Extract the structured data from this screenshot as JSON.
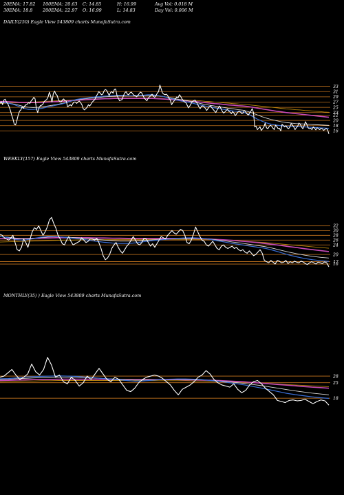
{
  "header": {
    "row1": [
      "20EMA: 17.82",
      "100EMA: 20.63",
      "C: 14.85",
      "H: 16.99",
      "Avg Vol: 0.018  M"
    ],
    "row2": [
      "30EMA: 18.8",
      "200EMA: 22.97",
      "O: 16.99",
      "L: 14.83",
      "Day Vol: 0.006  M"
    ]
  },
  "panels": {
    "daily": {
      "label": "DAILY(250) Eagle  View  543809 charts MunafaSutra.com"
    },
    "weekly": {
      "label": "WEEKLY(157) Eagle  View  543809 charts MunafaSutra.com"
    },
    "monthly": {
      "label": "MONTHLY(35)                    ) Eagle  View  543809 charts MunafaSutra.com"
    }
  },
  "colors": {
    "background": "#000000",
    "price": "#ffffff",
    "ema_short": "#3b6fd6",
    "ema_mid": "#d9d9d9",
    "ema_long": "#c84ab8",
    "ema_slow": "#b8860b",
    "grid": "#c8761e"
  },
  "chart_data": [
    {
      "type": "line",
      "name": "daily",
      "ylim": [
        14,
        35
      ],
      "yticks": [
        33,
        31,
        29,
        27,
        25,
        23,
        22,
        20,
        18,
        16
      ],
      "price": [
        26.5,
        27.2,
        26.0,
        27.8,
        28.1,
        27.0,
        26.4,
        25.2,
        23.8,
        22.0,
        20.5,
        18.5,
        18.3,
        20.0,
        22.0,
        23.5,
        24.0,
        25.2,
        24.6,
        25.5,
        26.0,
        26.2,
        26.8,
        26.5,
        27.5,
        28.0,
        28.8,
        28.2,
        24.5,
        23.0,
        24.8,
        25.6,
        25.8,
        26.2,
        27.2,
        27.6,
        28.0,
        29.0,
        30.8,
        29.2,
        27.0,
        30.2,
        31.2,
        30.0,
        29.5,
        27.8,
        27.2,
        27.0,
        27.8,
        28.2,
        27.5,
        27.4,
        25.2,
        25.6,
        26.0,
        25.5,
        26.4,
        27.0,
        27.0,
        26.5,
        27.0,
        27.4,
        26.8,
        26.0,
        24.5,
        24.0,
        24.5,
        25.0,
        26.0,
        25.5,
        26.2,
        27.0,
        27.5,
        28.0,
        29.2,
        30.0,
        31.0,
        30.5,
        29.8,
        30.0,
        31.2,
        31.8,
        31.5,
        30.5,
        29.5,
        30.6,
        31.0,
        30.4,
        31.8,
        32.0,
        29.5,
        28.5,
        27.5,
        27.8,
        28.0,
        29.5,
        30.5,
        31.0,
        30.0,
        29.8,
        30.5,
        30.8,
        30.2,
        29.6,
        29.5,
        29.0,
        29.5,
        30.2,
        30.8,
        30.5,
        29.5,
        28.5,
        28.0,
        27.5,
        28.5,
        29.0,
        29.5,
        30.0,
        29.2,
        28.8,
        29.5,
        30.4,
        31.0,
        33.5,
        32.0,
        30.5,
        30.0,
        29.8,
        30.0,
        29.5,
        28.4,
        27.8,
        26.0,
        26.8,
        27.5,
        28.2,
        29.0,
        28.6,
        29.8,
        29.2,
        28.2,
        27.6,
        27.0,
        26.8,
        25.8,
        24.8,
        25.5,
        26.4,
        27.2,
        27.5,
        27.8,
        27.0,
        26.2,
        25.2,
        24.5,
        25.4,
        25.5,
        25.2,
        24.6,
        23.8,
        24.5,
        25.2,
        25.6,
        24.8,
        24.2,
        23.6,
        23.0,
        24.0,
        24.8,
        25.5,
        24.5,
        23.5,
        22.8,
        23.2,
        23.8,
        24.2,
        23.5,
        23.2,
        22.6,
        23.4,
        22.8,
        21.8,
        22.5,
        23.2,
        23.6,
        23.2,
        22.6,
        22.8,
        23.8,
        23.2,
        22.5,
        22.0,
        22.8,
        23.5,
        24.5,
        23.0,
        17.5,
        17.8,
        16.5,
        17.0,
        17.6,
        16.2,
        16.8,
        17.5,
        19.0,
        17.2,
        16.8,
        17.6,
        18.2,
        17.8,
        17.0,
        16.5,
        18.2,
        17.6,
        16.8,
        17.0,
        16.0,
        18.5,
        18.0,
        17.5,
        18.0,
        17.2,
        16.8,
        17.5,
        18.8,
        18.2,
        17.5,
        16.5,
        17.2,
        17.8,
        19.0,
        18.5,
        17.5,
        16.8,
        18.0,
        19.5,
        18.5,
        17.2,
        16.8,
        17.0,
        16.5,
        17.5,
        17.0,
        16.4,
        17.2,
        16.8,
        16.5,
        17.0,
        16.8,
        16.2,
        16.6,
        16.9,
        16.5,
        14.85
      ],
      "ema_20": [
        26.9,
        26.8,
        26.5,
        26.0,
        25.3,
        24.6,
        24.2,
        24.2,
        24.4,
        24.7,
        25.1,
        25.5,
        25.9,
        26.3,
        26.8,
        27.4,
        28.0,
        28.3,
        28.5,
        28.8,
        29.0,
        29.1,
        29.3,
        29.4,
        29.5,
        29.6,
        29.5,
        29.4,
        29.4,
        29.5,
        29.6,
        29.8,
        29.8,
        29.5,
        29.2,
        28.8,
        28.3,
        27.8,
        27.4,
        27.1,
        26.8,
        26.3,
        25.9,
        25.5,
        25.2,
        24.8,
        24.5,
        24.2,
        23.9,
        23.6,
        23.4,
        23.2,
        22.5,
        21.5,
        20.5,
        19.7,
        19.0,
        18.5,
        18.2,
        18.0,
        17.8,
        17.8,
        17.7,
        17.6,
        17.5,
        17.4,
        17.3,
        17.2,
        17.1,
        17.0
      ],
      "ema_30": [
        26.8,
        26.7,
        26.5,
        26.2,
        25.8,
        25.3,
        25.0,
        24.9,
        25.0,
        25.2,
        25.5,
        25.8,
        26.1,
        26.5,
        26.9,
        27.4,
        27.8,
        28.1,
        28.3,
        28.5,
        28.7,
        28.8,
        29.0,
        29.1,
        29.2,
        29.3,
        29.3,
        29.3,
        29.3,
        29.3,
        29.4,
        29.5,
        29.5,
        29.4,
        29.2,
        28.9,
        28.6,
        28.2,
        27.9,
        27.6,
        27.3,
        26.9,
        26.5,
        26.1,
        25.8,
        25.5,
        25.2,
        24.9,
        24.6,
        24.4,
        24.1,
        23.9,
        23.4,
        22.8,
        22.1,
        21.4,
        20.8,
        20.3,
        19.9,
        19.5,
        19.2,
        19.0,
        18.8,
        18.7,
        18.6,
        18.5,
        18.4,
        18.3,
        18.2,
        18.1
      ],
      "ema_100": [
        27.2,
        27.2,
        27.1,
        27.0,
        26.9,
        26.8,
        26.8,
        26.8,
        26.8,
        26.9,
        27.0,
        27.1,
        27.2,
        27.3,
        27.4,
        27.6,
        27.7,
        27.8,
        27.9,
        28.0,
        28.1,
        28.2,
        28.3,
        28.3,
        28.4,
        28.4,
        28.4,
        28.4,
        28.4,
        28.4,
        28.4,
        28.4,
        28.4,
        28.3,
        28.2,
        28.1,
        27.9,
        27.8,
        27.6,
        27.5,
        27.3,
        27.2,
        27.0,
        26.8,
        26.6,
        26.4,
        26.3,
        26.1,
        25.9,
        25.8,
        25.6,
        25.5,
        25.3,
        25.0,
        24.7,
        24.4,
        24.1,
        23.8,
        23.5,
        23.3,
        23.0,
        22.8,
        22.6,
        22.4,
        22.2,
        22.0,
        21.8,
        21.6,
        21.4,
        21.2
      ],
      "ema_200": [
        26.5,
        26.6,
        26.7,
        26.7,
        26.8,
        26.8,
        26.9,
        27.0,
        27.1,
        27.2,
        27.3,
        27.4,
        27.5,
        27.6,
        27.7,
        27.8,
        27.9,
        28.0,
        28.0,
        28.1,
        28.2,
        28.2,
        28.3,
        28.3,
        28.3,
        28.4,
        28.4,
        28.4,
        28.4,
        28.4,
        28.4,
        28.4,
        28.4,
        28.3,
        28.3,
        28.2,
        28.1,
        28.0,
        27.9,
        27.8,
        27.7,
        27.6,
        27.5,
        27.3,
        27.2,
        27.0,
        26.9,
        26.7,
        26.6,
        26.4,
        26.3,
        26.1,
        26.0,
        25.8,
        25.6,
        25.4,
        25.2,
        25.0,
        24.8,
        24.6,
        24.4,
        24.3,
        24.1,
        24.0,
        23.8,
        23.7,
        23.5,
        23.4,
        23.2,
        23.1
      ]
    },
    {
      "type": "line",
      "name": "weekly",
      "ylim": [
        14,
        35
      ],
      "yticks": [
        32,
        30,
        28,
        26,
        24,
        20,
        17,
        16
      ],
      "price": [
        28.5,
        28.0,
        27.0,
        26.5,
        26.0,
        26.8,
        28.0,
        25.0,
        22.0,
        21.5,
        23.0,
        26.5,
        25.0,
        23.0,
        26.5,
        29.5,
        31.2,
        30.5,
        32.0,
        30.0,
        28.0,
        29.5,
        31.5,
        34.5,
        35.5,
        33.0,
        31.0,
        28.0,
        26.5,
        24.5,
        24.0,
        26.0,
        27.5,
        25.5,
        24.0,
        24.5,
        25.0,
        25.5,
        27.0,
        26.0,
        25.0,
        25.5,
        26.5,
        26.5,
        26.0,
        26.8,
        25.0,
        22.5,
        19.5,
        17.8,
        18.5,
        20.0,
        22.5,
        24.0,
        25.0,
        23.0,
        21.5,
        20.5,
        22.0,
        23.5,
        24.5,
        26.0,
        27.5,
        26.0,
        24.5,
        24.0,
        25.0,
        26.8,
        26.5,
        25.0,
        23.5,
        24.5,
        23.0,
        24.5,
        26.0,
        27.5,
        27.0,
        26.5,
        28.0,
        29.0,
        30.0,
        29.0,
        28.5,
        29.5,
        30.5,
        30.0,
        28.0,
        25.0,
        24.5,
        26.0,
        28.5,
        31.5,
        29.5,
        27.5,
        26.0,
        25.5,
        24.0,
        23.5,
        24.5,
        25.5,
        24.0,
        22.5,
        22.0,
        23.5,
        24.0,
        23.0,
        22.5,
        23.0,
        23.5,
        22.5,
        23.0,
        22.0,
        21.5,
        22.0,
        21.0,
        20.5,
        21.5,
        20.5,
        19.5,
        20.0,
        21.0,
        22.0,
        20.5,
        17.5,
        17.0,
        16.5,
        17.5,
        16.8,
        16.0,
        17.5,
        17.2,
        16.5,
        16.8,
        17.5,
        16.2,
        17.0,
        16.5,
        17.2,
        16.8,
        16.5,
        17.2,
        16.9,
        16.2,
        15.8,
        16.5,
        17.0,
        16.5,
        16.0,
        16.8,
        16.5,
        16.2,
        16.9,
        16.5,
        14.85
      ],
      "ema_20": [
        27.5,
        27.0,
        26.2,
        26.0,
        26.5,
        27.2,
        27.6,
        27.5,
        27.2,
        26.8,
        26.5,
        26.0,
        25.5,
        25.1,
        24.8,
        24.6,
        24.6,
        24.9,
        25.4,
        25.8,
        26.1,
        26.4,
        26.7,
        26.9,
        27.0,
        26.8,
        26.4,
        25.8,
        25.2,
        24.6,
        24.1,
        23.6,
        23.1,
        22.6,
        21.8,
        20.8,
        19.8,
        19.0,
        18.3,
        17.8,
        17.4,
        17.1
      ],
      "ema_30": [
        27.4,
        27.2,
        26.8,
        26.6,
        26.7,
        27.0,
        27.3,
        27.4,
        27.3,
        27.1,
        26.9,
        26.6,
        26.3,
        26.0,
        25.8,
        25.6,
        25.6,
        25.7,
        25.9,
        26.1,
        26.3,
        26.5,
        26.6,
        26.7,
        26.8,
        26.7,
        26.5,
        26.1,
        25.7,
        25.2,
        24.8,
        24.3,
        23.8,
        23.3,
        22.6,
        21.8,
        21.0,
        20.3,
        19.7,
        19.2,
        18.8,
        18.5
      ],
      "ema_100": [
        26.6,
        26.6,
        26.6,
        26.6,
        26.7,
        26.8,
        26.9,
        27.0,
        27.0,
        27.0,
        27.0,
        27.0,
        26.9,
        26.9,
        26.8,
        26.8,
        26.7,
        26.7,
        26.7,
        26.7,
        26.7,
        26.7,
        26.7,
        26.7,
        26.7,
        26.6,
        26.5,
        26.3,
        26.1,
        25.9,
        25.6,
        25.3,
        25.0,
        24.6,
        24.2,
        23.8,
        23.3,
        22.9,
        22.4,
        22.0,
        21.6,
        21.2
      ],
      "ema_200": [
        25.2,
        25.3,
        25.4,
        25.5,
        25.6,
        25.7,
        25.8,
        25.9,
        26.0,
        26.0,
        26.1,
        26.1,
        26.2,
        26.2,
        26.2,
        26.3,
        26.3,
        26.3,
        26.3,
        26.3,
        26.3,
        26.3,
        26.3,
        26.3,
        26.3,
        26.2,
        26.2,
        26.1,
        26.0,
        25.8,
        25.6,
        25.4,
        25.2,
        25.0,
        24.7,
        24.4,
        24.1,
        23.8,
        23.5,
        23.2,
        22.9,
        22.6
      ]
    },
    {
      "type": "line",
      "name": "monthly",
      "ylim": [
        14,
        38
      ],
      "yticks": [
        28,
        25,
        18
      ],
      "price": [
        27.5,
        28.0,
        29.5,
        31.0,
        28.5,
        26.5,
        27.5,
        29.0,
        33.5,
        30.0,
        28.5,
        31.0,
        36.5,
        33.0,
        27.5,
        28.5,
        25.5,
        24.5,
        27.5,
        26.0,
        23.5,
        25.0,
        28.0,
        26.5,
        29.0,
        31.5,
        29.0,
        26.5,
        25.5,
        27.5,
        26.5,
        24.0,
        21.5,
        21.0,
        22.5,
        25.0,
        26.5,
        27.5,
        28.0,
        28.5,
        28.0,
        27.0,
        25.5,
        24.0,
        21.5,
        19.5,
        22.0,
        23.0,
        24.0,
        25.5,
        27.5,
        28.5,
        30.5,
        29.0,
        26.5,
        25.0,
        24.0,
        23.5,
        23.0,
        24.5,
        22.0,
        20.5,
        21.5,
        24.0,
        25.5,
        26.0,
        24.5,
        22.5,
        21.0,
        19.5,
        17.0,
        16.5,
        16.0,
        17.0,
        17.2,
        16.8,
        17.0,
        17.5,
        16.5,
        15.5,
        16.5,
        17.2,
        16.8,
        14.85
      ],
      "ema_20": [
        26.8,
        26.9,
        27.2,
        27.6,
        27.8,
        27.9,
        28.0,
        28.1,
        28.0,
        27.9,
        27.6,
        27.3,
        27.0,
        26.7,
        26.4,
        26.0,
        25.7,
        25.8,
        26.1,
        26.4,
        26.6,
        26.7,
        26.7,
        26.6,
        26.4,
        26.0,
        25.6,
        25.1,
        24.6,
        24.0,
        23.3,
        22.6,
        21.8,
        21.0,
        20.2,
        19.6,
        19.1,
        18.6,
        18.2,
        17.9
      ],
      "ema_30": [
        26.5,
        26.6,
        26.8,
        27.0,
        27.2,
        27.3,
        27.4,
        27.5,
        27.5,
        27.5,
        27.4,
        27.2,
        27.0,
        26.8,
        26.6,
        26.4,
        26.2,
        26.2,
        26.3,
        26.4,
        26.5,
        26.5,
        26.5,
        26.4,
        26.3,
        26.1,
        25.8,
        25.5,
        25.1,
        24.7,
        24.2,
        23.7,
        23.1,
        22.5,
        21.9,
        21.3,
        20.8,
        20.3,
        19.9,
        19.5
      ],
      "ema_100": [
        26.0,
        26.1,
        26.2,
        26.3,
        26.4,
        26.5,
        26.5,
        26.6,
        26.6,
        26.6,
        26.6,
        26.6,
        26.6,
        26.5,
        26.5,
        26.4,
        26.4,
        26.4,
        26.4,
        26.4,
        26.4,
        26.4,
        26.3,
        26.3,
        26.2,
        26.1,
        26.0,
        25.8,
        25.6,
        25.4,
        25.1,
        24.8,
        24.5,
        24.2,
        23.9,
        23.6,
        23.3,
        23.0,
        22.8,
        22.5
      ],
      "ema_200": [
        25.5,
        25.6,
        25.7,
        25.8,
        25.8,
        25.9,
        25.9,
        26.0,
        26.0,
        26.0,
        26.0,
        26.0,
        26.0,
        26.0,
        26.0,
        26.0,
        25.9,
        25.9,
        25.9,
        25.9,
        25.9,
        25.9,
        25.9,
        25.8,
        25.8,
        25.7,
        25.6,
        25.5,
        25.4,
        25.2,
        25.0,
        24.8,
        24.6,
        24.4,
        24.2,
        24.0,
        23.8,
        23.6,
        23.4,
        23.2
      ]
    }
  ]
}
